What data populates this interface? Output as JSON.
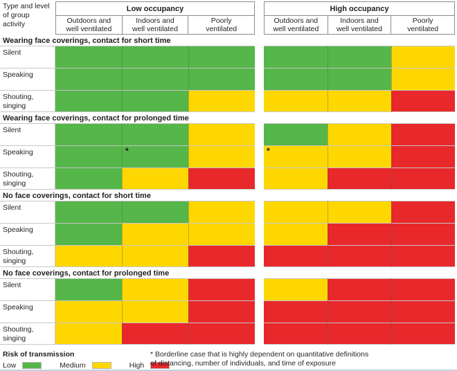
{
  "chart_data": {
    "type": "heatmap",
    "row_axis_label": "Type and level\nof group activity",
    "column_groups": [
      {
        "label": "Low occupancy",
        "columns": [
          "Outdoors and\nwell ventilated",
          "Indoors and\nwell ventilated",
          "Poorly\nventilated"
        ]
      },
      {
        "label": "High occupancy",
        "columns": [
          "Outdoors and\nwell ventilated",
          "Indoors and\nwell ventilated",
          "Poorly\nventilated"
        ]
      }
    ],
    "risk_levels": {
      "low": "#55b649",
      "medium": "#fed700",
      "high": "#e8282b"
    },
    "sections": [
      {
        "title": "Wearing face coverings, contact for short time",
        "rows": [
          {
            "label": "Silent",
            "cells": [
              "low",
              "low",
              "low",
              "low",
              "low",
              "medium"
            ]
          },
          {
            "label": "Speaking",
            "cells": [
              "low",
              "low",
              "low",
              "low",
              "low",
              "medium"
            ]
          },
          {
            "label": "Shouting,\nsinging",
            "cells": [
              "low",
              "low",
              "medium",
              "medium",
              "medium",
              "high"
            ]
          }
        ]
      },
      {
        "title": "Wearing face coverings, contact for prolonged time",
        "rows": [
          {
            "label": "Silent",
            "cells": [
              "low",
              "low",
              "medium",
              "low",
              "medium",
              "high"
            ]
          },
          {
            "label": "Speaking",
            "cells": [
              "low",
              "low*",
              "medium",
              "medium*",
              "medium",
              "high"
            ]
          },
          {
            "label": "Shouting,\nsinging",
            "cells": [
              "low",
              "medium",
              "high",
              "medium",
              "high",
              "high"
            ]
          }
        ]
      },
      {
        "title": "No face coverings, contact for short time",
        "rows": [
          {
            "label": "Silent",
            "cells": [
              "low",
              "low",
              "medium",
              "medium",
              "medium",
              "high"
            ]
          },
          {
            "label": "Speaking",
            "cells": [
              "low",
              "medium",
              "medium",
              "medium",
              "high",
              "high"
            ]
          },
          {
            "label": "Shouting,\nsinging",
            "cells": [
              "medium",
              "medium",
              "high",
              "high",
              "high",
              "high"
            ]
          }
        ]
      },
      {
        "title": "No face coverings, contact for prolonged time",
        "rows": [
          {
            "label": "Silent",
            "cells": [
              "low",
              "medium",
              "high",
              "medium",
              "high",
              "high"
            ]
          },
          {
            "label": "Speaking",
            "cells": [
              "medium",
              "medium",
              "high",
              "high",
              "high",
              "high"
            ]
          },
          {
            "label": "Shouting,\nsinging",
            "cells": [
              "medium",
              "high",
              "high",
              "high",
              "high",
              "high"
            ]
          }
        ]
      }
    ],
    "legend_title": "Risk of transmission",
    "legend_items": [
      {
        "label": "Low",
        "level": "low"
      },
      {
        "label": "Medium",
        "level": "medium"
      },
      {
        "label": "High",
        "level": "high"
      }
    ],
    "footnote": "* Borderline case that is highly dependent on quantitative definitions\nof distancing, number of individuals, and time of exposure"
  }
}
